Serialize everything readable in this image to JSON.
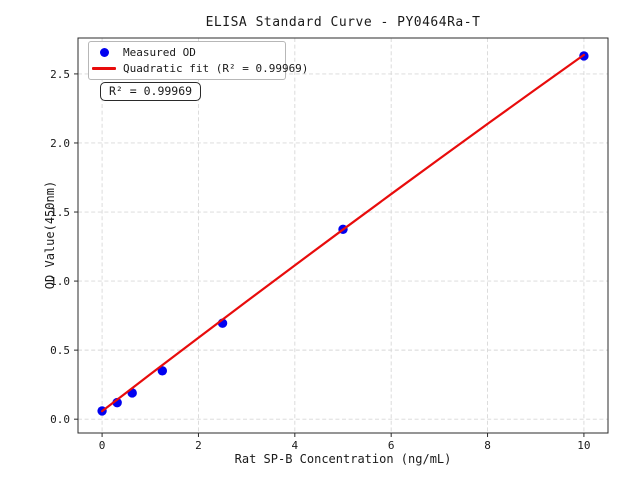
{
  "chart_data": {
    "type": "scatter",
    "title": "ELISA Standard Curve - PY0464Ra-T",
    "xlabel": "Rat SP-B Concentration (ng/mL)",
    "ylabel": "OD Value(450nm)",
    "xlim": [
      -0.5,
      10.5
    ],
    "ylim": [
      -0.1,
      2.76
    ],
    "grid": true,
    "grid_style": "dashed",
    "legend_position": "upper left",
    "xticks": {
      "values": [
        0,
        2,
        4,
        6,
        8,
        10
      ],
      "labels": [
        "0",
        "2",
        "4",
        "6",
        "8",
        "10"
      ]
    },
    "yticks": {
      "values": [
        0.0,
        0.5,
        1.0,
        1.5,
        2.0,
        2.5
      ],
      "labels": [
        "0.0",
        "0.5",
        "1.0",
        "1.5",
        "2.0",
        "2.5"
      ]
    },
    "series": [
      {
        "name": "Measured OD",
        "kind": "scatter",
        "color": "#0202f0",
        "x": [
          0,
          0.3125,
          0.625,
          1.25,
          2.5,
          5,
          10
        ],
        "y": [
          0.06,
          0.12,
          0.19,
          0.35,
          0.695,
          1.375,
          2.63
        ]
      },
      {
        "name": "Quadratic fit (R² = 0.99969)",
        "kind": "line",
        "color": "#e80c0c",
        "x": [
          0,
          1,
          2,
          3,
          4,
          5,
          6,
          7,
          8,
          9,
          10
        ],
        "y": [
          0.058,
          0.325,
          0.59,
          0.853,
          1.114,
          1.373,
          1.63,
          1.885,
          2.138,
          2.389,
          2.638
        ]
      }
    ],
    "annotation": {
      "text": "R² = 0.99969"
    }
  },
  "style": {
    "grid_color": "#d8d8d8",
    "frame_color": "#2b2b2b",
    "tick_color": "#2b2b2b",
    "text_color": "#1a1a1a",
    "background": "#ffffff"
  }
}
